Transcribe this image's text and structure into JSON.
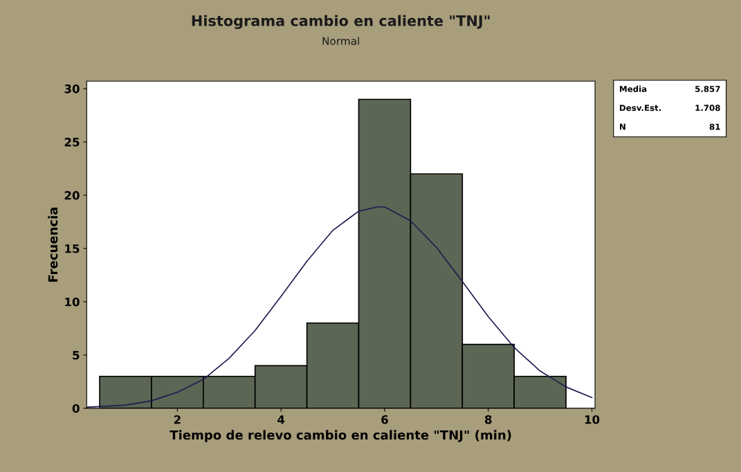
{
  "chart_data": {
    "type": "histogram",
    "title": "Histograma cambio en caliente \"TNJ\"",
    "subtitle": "Normal",
    "xlabel": "Tiempo de relevo cambio en caliente \"TNJ\" (min)",
    "ylabel": "Frecuencia",
    "bins": [
      0.5,
      1.5,
      2.5,
      3.5,
      4.5,
      5.5,
      6.5,
      7.5,
      8.5,
      9.5
    ],
    "values": [
      3,
      3,
      3,
      4,
      8,
      29,
      22,
      6,
      3
    ],
    "color": "#5c6654",
    "series": [
      {
        "type": "line",
        "color": "#1c1c50",
        "x": [
          0.25,
          1,
          1.5,
          2,
          2.5,
          3,
          3.5,
          4,
          4.5,
          5,
          5.5,
          5.857,
          6,
          6.5,
          7,
          7.5,
          8,
          8.5,
          9,
          9.5,
          10
        ],
        "values": [
          0.1,
          0.3,
          0.7,
          1.5,
          2.7,
          4.7,
          7.3,
          10.5,
          13.8,
          16.7,
          18.5,
          18.9,
          18.9,
          17.6,
          15.1,
          11.9,
          8.6,
          5.7,
          3.5,
          2.0,
          1.0
        ]
      }
    ],
    "xlim": [
      0.25,
      10.06
    ],
    "xticks": [
      2,
      4,
      6,
      8,
      10
    ],
    "ylim": [
      0,
      30.7
    ],
    "yticks": [
      0,
      5,
      10,
      15,
      20,
      25,
      30
    ],
    "annotations": [
      "Media",
      "5.857",
      "Desv.Est.",
      "1.708",
      "N",
      "81"
    ],
    "grid": false,
    "legend": false
  }
}
